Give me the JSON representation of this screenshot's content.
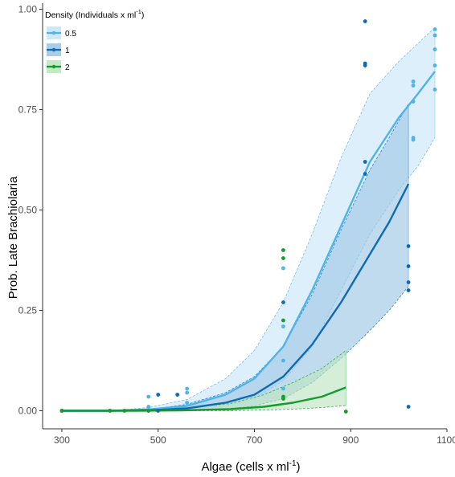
{
  "chart_data": {
    "type": "line",
    "xlabel": "Algae (cells x ml",
    "xlabel_sup": "-1",
    "xlabel_close": ")",
    "ylabel": "Prob. Late Brachiolaria",
    "xlim": [
      260,
      1100
    ],
    "ylim": [
      -0.045,
      1.015
    ],
    "x_ticks": [
      300,
      500,
      700,
      900,
      1100
    ],
    "y_ticks": [
      0.0,
      0.25,
      0.5,
      0.75,
      1.0
    ],
    "y_tick_labels": [
      "0.00",
      "0.25",
      "0.50",
      "0.75",
      "1.00"
    ],
    "grid": false,
    "legend": {
      "title": "Density (Individuals x ml",
      "title_sup": "-1",
      "title_close": ")",
      "position": "top-left"
    },
    "series": [
      {
        "name": "0.5",
        "color": "#4fb3e8",
        "fill": "#c9e6f7",
        "curve": [
          {
            "x": 300,
            "y": 0.0,
            "lo": 0.0,
            "hi": 0.0
          },
          {
            "x": 400,
            "y": 0.0,
            "lo": 0.0,
            "hi": 0.0
          },
          {
            "x": 480,
            "y": 0.003,
            "lo": 0.0,
            "hi": 0.008
          },
          {
            "x": 560,
            "y": 0.012,
            "lo": 0.003,
            "hi": 0.028
          },
          {
            "x": 640,
            "y": 0.04,
            "lo": 0.012,
            "hi": 0.08
          },
          {
            "x": 700,
            "y": 0.08,
            "lo": 0.03,
            "hi": 0.15
          },
          {
            "x": 760,
            "y": 0.16,
            "lo": 0.075,
            "hi": 0.27
          },
          {
            "x": 820,
            "y": 0.3,
            "lo": 0.16,
            "hi": 0.44
          },
          {
            "x": 880,
            "y": 0.46,
            "lo": 0.3,
            "hi": 0.63
          },
          {
            "x": 940,
            "y": 0.62,
            "lo": 0.44,
            "hi": 0.79
          },
          {
            "x": 1000,
            "y": 0.73,
            "lo": 0.55,
            "hi": 0.87
          },
          {
            "x": 1040,
            "y": 0.79,
            "lo": 0.61,
            "hi": 0.915
          },
          {
            "x": 1075,
            "y": 0.845,
            "lo": 0.68,
            "hi": 0.955
          }
        ],
        "points": [
          {
            "x": 300,
            "y": 0.0
          },
          {
            "x": 480,
            "y": 0.035
          },
          {
            "x": 480,
            "y": 0.01
          },
          {
            "x": 480,
            "y": 0.0
          },
          {
            "x": 560,
            "y": 0.055
          },
          {
            "x": 560,
            "y": 0.045
          },
          {
            "x": 560,
            "y": 0.02
          },
          {
            "x": 760,
            "y": 0.355
          },
          {
            "x": 760,
            "y": 0.21
          },
          {
            "x": 760,
            "y": 0.125
          },
          {
            "x": 760,
            "y": 0.055
          },
          {
            "x": 1030,
            "y": 0.82
          },
          {
            "x": 1030,
            "y": 0.81
          },
          {
            "x": 1030,
            "y": 0.77
          },
          {
            "x": 1030,
            "y": 0.68
          },
          {
            "x": 1030,
            "y": 0.675
          },
          {
            "x": 1075,
            "y": 0.95
          },
          {
            "x": 1075,
            "y": 0.935
          },
          {
            "x": 1075,
            "y": 0.9
          },
          {
            "x": 1075,
            "y": 0.86
          },
          {
            "x": 1075,
            "y": 0.8
          }
        ]
      },
      {
        "name": "1",
        "color": "#0f6ab4",
        "fill": "#9fc8e5",
        "curve": [
          {
            "x": 300,
            "y": 0.0,
            "lo": 0.0,
            "hi": 0.0
          },
          {
            "x": 400,
            "y": 0.0,
            "lo": 0.0,
            "hi": 0.0
          },
          {
            "x": 500,
            "y": 0.002,
            "lo": 0.0,
            "hi": 0.006
          },
          {
            "x": 560,
            "y": 0.006,
            "lo": 0.001,
            "hi": 0.016
          },
          {
            "x": 640,
            "y": 0.02,
            "lo": 0.005,
            "hi": 0.045
          },
          {
            "x": 700,
            "y": 0.04,
            "lo": 0.012,
            "hi": 0.085
          },
          {
            "x": 760,
            "y": 0.085,
            "lo": 0.03,
            "hi": 0.16
          },
          {
            "x": 820,
            "y": 0.165,
            "lo": 0.07,
            "hi": 0.29
          },
          {
            "x": 880,
            "y": 0.27,
            "lo": 0.13,
            "hi": 0.45
          },
          {
            "x": 940,
            "y": 0.39,
            "lo": 0.2,
            "hi": 0.6
          },
          {
            "x": 980,
            "y": 0.47,
            "lo": 0.25,
            "hi": 0.68
          },
          {
            "x": 1020,
            "y": 0.565,
            "lo": 0.31,
            "hi": 0.765
          }
        ],
        "points": [
          {
            "x": 300,
            "y": 0.0
          },
          {
            "x": 400,
            "y": 0.0
          },
          {
            "x": 500,
            "y": 0.04
          },
          {
            "x": 500,
            "y": 0.0
          },
          {
            "x": 540,
            "y": 0.04
          },
          {
            "x": 760,
            "y": 0.27
          },
          {
            "x": 930,
            "y": 0.97
          },
          {
            "x": 930,
            "y": 0.865
          },
          {
            "x": 930,
            "y": 0.86
          },
          {
            "x": 930,
            "y": 0.62
          },
          {
            "x": 930,
            "y": 0.59
          },
          {
            "x": 1020,
            "y": 0.41
          },
          {
            "x": 1020,
            "y": 0.36
          },
          {
            "x": 1020,
            "y": 0.32
          },
          {
            "x": 1020,
            "y": 0.3
          },
          {
            "x": 1020,
            "y": 0.01
          }
        ]
      },
      {
        "name": "2",
        "color": "#139c2c",
        "fill": "#bfe5c1",
        "curve": [
          {
            "x": 300,
            "y": 0.0,
            "lo": 0.0,
            "hi": 0.0
          },
          {
            "x": 450,
            "y": 0.0,
            "lo": 0.0,
            "hi": 0.002
          },
          {
            "x": 550,
            "y": 0.001,
            "lo": 0.0,
            "hi": 0.006
          },
          {
            "x": 650,
            "y": 0.004,
            "lo": 0.0,
            "hi": 0.018
          },
          {
            "x": 720,
            "y": 0.01,
            "lo": 0.002,
            "hi": 0.04
          },
          {
            "x": 780,
            "y": 0.02,
            "lo": 0.004,
            "hi": 0.07
          },
          {
            "x": 840,
            "y": 0.035,
            "lo": 0.008,
            "hi": 0.105
          },
          {
            "x": 890,
            "y": 0.058,
            "lo": 0.013,
            "hi": 0.15
          }
        ],
        "points": [
          {
            "x": 300,
            "y": 0.0
          },
          {
            "x": 400,
            "y": 0.0
          },
          {
            "x": 430,
            "y": 0.0
          },
          {
            "x": 480,
            "y": 0.0
          },
          {
            "x": 760,
            "y": 0.4
          },
          {
            "x": 760,
            "y": 0.38
          },
          {
            "x": 760,
            "y": 0.225
          },
          {
            "x": 760,
            "y": 0.035
          },
          {
            "x": 760,
            "y": 0.03
          },
          {
            "x": 890,
            "y": -0.002
          }
        ]
      }
    ]
  }
}
